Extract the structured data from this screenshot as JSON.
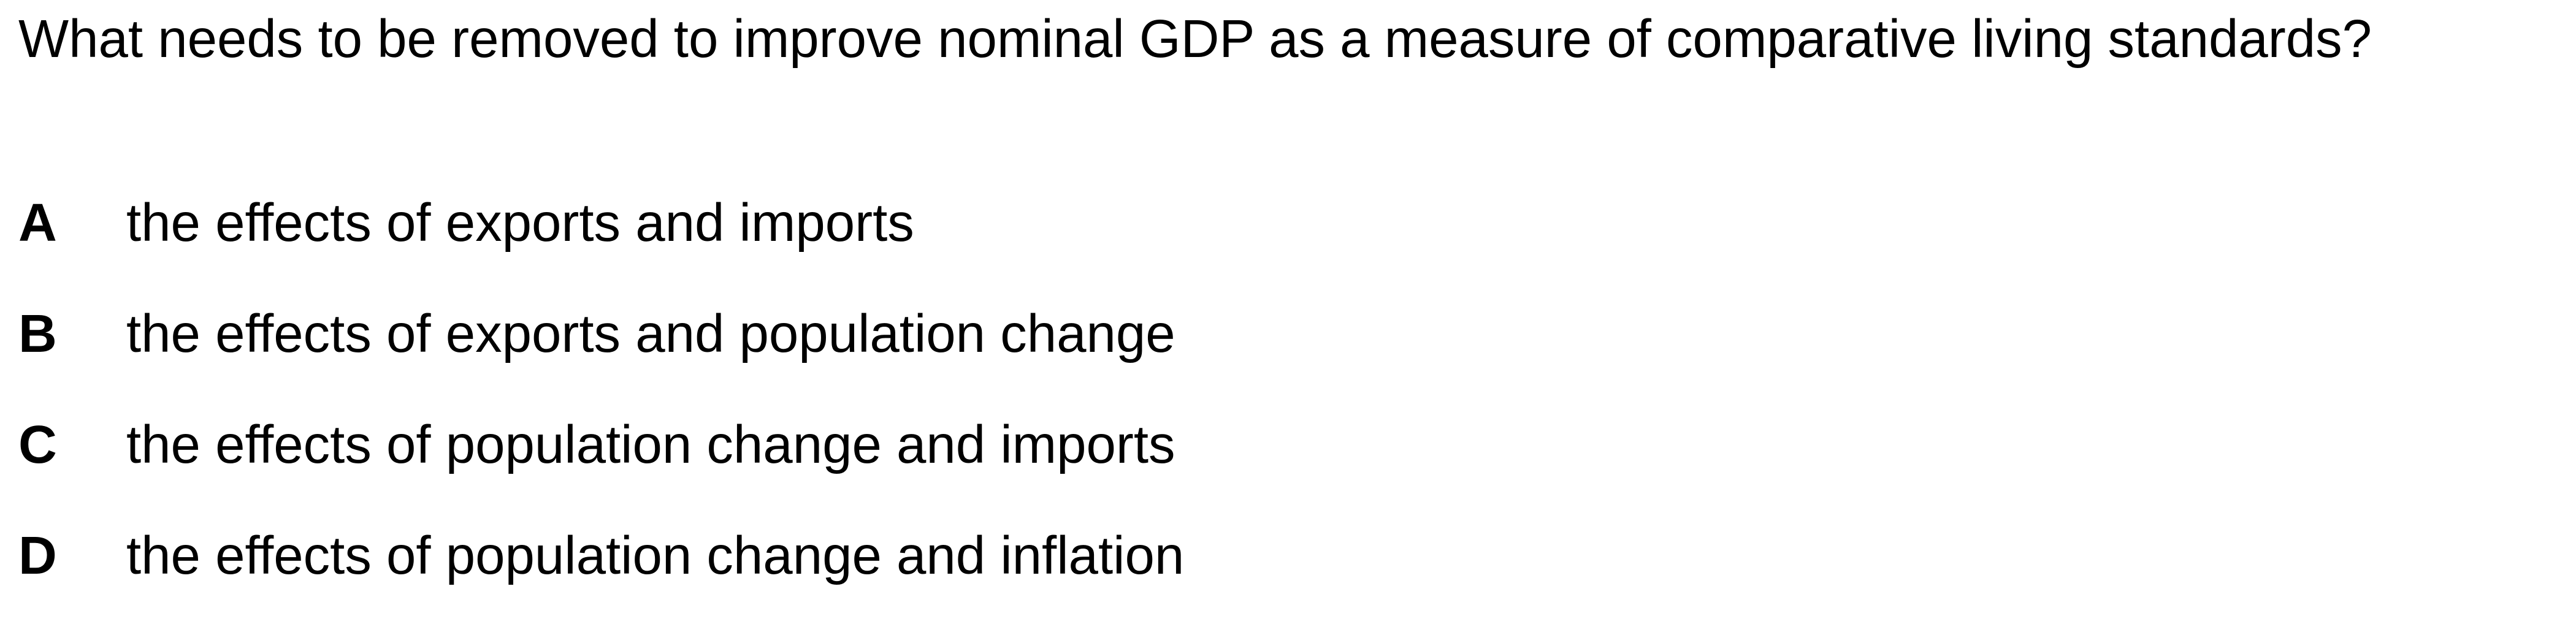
{
  "question": {
    "text": "What needs to be removed to improve nominal GDP as a measure of comparative living standards?"
  },
  "options": [
    {
      "letter": "A",
      "text": "the effects of exports and imports"
    },
    {
      "letter": "B",
      "text": "the effects of exports and population change"
    },
    {
      "letter": "C",
      "text": "the effects of population change and imports"
    },
    {
      "letter": "D",
      "text": "the effects of population change and inflation"
    }
  ]
}
